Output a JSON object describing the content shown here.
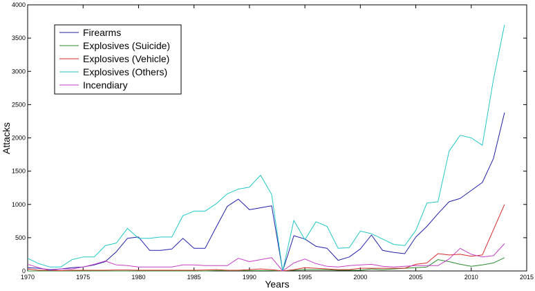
{
  "chart_data": {
    "type": "line",
    "xlabel": "Years",
    "ylabel": "Attacks",
    "xlim": [
      1970,
      2015
    ],
    "ylim": [
      0,
      4000
    ],
    "xticks": [
      "1970",
      "1975",
      "1980",
      "1985",
      "1990",
      "1995",
      "2000",
      "2005",
      "2010",
      "2015"
    ],
    "yticks": [
      "0",
      "500",
      "1000",
      "1500",
      "2000",
      "2500",
      "3000",
      "3500",
      "4000"
    ],
    "grid": false,
    "legend": "top-left",
    "x": [
      1970,
      1971,
      1972,
      1973,
      1974,
      1975,
      1976,
      1977,
      1978,
      1979,
      1980,
      1981,
      1982,
      1983,
      1984,
      1985,
      1986,
      1987,
      1988,
      1989,
      1990,
      1991,
      1992,
      1993,
      1994,
      1995,
      1996,
      1997,
      1998,
      1999,
      2000,
      2001,
      2002,
      2003,
      2004,
      2005,
      2006,
      2007,
      2008,
      2009,
      2010,
      2011,
      2012,
      2013
    ],
    "series": [
      {
        "name": "Firearms",
        "color": "#1f1fa8",
        "values": [
          50,
          40,
          20,
          30,
          50,
          60,
          90,
          140,
          290,
          490,
          510,
          310,
          310,
          330,
          490,
          340,
          340,
          660,
          970,
          1080,
          920,
          950,
          980,
          0,
          530,
          480,
          370,
          340,
          160,
          210,
          330,
          540,
          310,
          280,
          260,
          510,
          670,
          860,
          1040,
          1090,
          1210,
          1330,
          1690,
          2380
        ]
      },
      {
        "name": "Explosives (Suicide)",
        "color": "#2a8c2a",
        "values": [
          0,
          0,
          0,
          0,
          0,
          0,
          0,
          0,
          0,
          0,
          0,
          0,
          0,
          0,
          0,
          0,
          0,
          5,
          5,
          5,
          5,
          5,
          5,
          0,
          10,
          20,
          20,
          20,
          10,
          10,
          10,
          30,
          20,
          30,
          40,
          50,
          60,
          170,
          140,
          100,
          70,
          90,
          120,
          200
        ]
      },
      {
        "name": "Explosives (Vehicle)",
        "color": "#d42a2a",
        "values": [
          30,
          10,
          10,
          5,
          10,
          10,
          10,
          10,
          15,
          15,
          10,
          10,
          10,
          10,
          10,
          10,
          15,
          20,
          10,
          10,
          20,
          30,
          20,
          0,
          20,
          50,
          40,
          30,
          20,
          20,
          40,
          40,
          40,
          40,
          40,
          100,
          120,
          260,
          240,
          250,
          220,
          240,
          620,
          1000
        ]
      },
      {
        "name": "Explosives (Others)",
        "color": "#22c7c7",
        "values": [
          190,
          110,
          60,
          60,
          170,
          210,
          210,
          380,
          420,
          640,
          490,
          490,
          510,
          510,
          830,
          900,
          900,
          1010,
          1160,
          1230,
          1260,
          1440,
          1150,
          0,
          760,
          470,
          740,
          670,
          340,
          350,
          600,
          560,
          480,
          400,
          380,
          610,
          1020,
          1040,
          1800,
          2040,
          2000,
          1890,
          2880,
          3700
        ]
      },
      {
        "name": "Incendiary",
        "color": "#c43ec4",
        "values": [
          100,
          50,
          10,
          30,
          30,
          60,
          100,
          150,
          90,
          80,
          60,
          60,
          60,
          60,
          90,
          90,
          80,
          80,
          80,
          190,
          140,
          170,
          200,
          0,
          120,
          180,
          110,
          70,
          60,
          80,
          90,
          100,
          70,
          60,
          70,
          80,
          80,
          80,
          180,
          340,
          250,
          210,
          230,
          410
        ]
      }
    ]
  }
}
